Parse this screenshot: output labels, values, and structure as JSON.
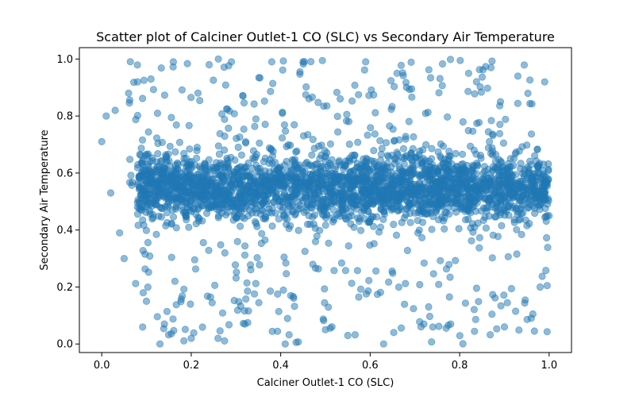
{
  "chart_data": {
    "type": "scatter",
    "title": "Scatter plot of Calciner Outlet-1 CO (SLC) vs Secondary Air Temperature",
    "xlabel": "Calciner Outlet-1 CO (SLC)",
    "ylabel": "Secondary Air Temperature",
    "xlim": [
      -0.05,
      1.05
    ],
    "ylim": [
      -0.03,
      1.04
    ],
    "xticks": [
      "0.0",
      "0.2",
      "0.4",
      "0.6",
      "0.8",
      "1.0"
    ],
    "yticks": [
      "0.0",
      "0.2",
      "0.4",
      "0.6",
      "0.8",
      "1.0"
    ],
    "grid": false,
    "legend": "none",
    "marker_color": "#1f77b4",
    "marker_alpha": 0.5,
    "series": [
      {
        "points_sampled": [
          [
            0.0,
            0.71
          ],
          [
            0.01,
            0.8
          ],
          [
            0.02,
            0.53
          ],
          [
            0.03,
            0.82
          ],
          [
            0.04,
            0.39
          ],
          [
            0.05,
            0.3
          ],
          [
            0.06,
            0.88
          ],
          [
            0.08,
            0.92
          ],
          [
            0.1,
            0.15
          ],
          [
            0.11,
            0.93
          ],
          [
            0.13,
            0.0
          ],
          [
            0.14,
            0.07
          ],
          [
            0.16,
            0.99
          ],
          [
            0.2,
            0.02
          ],
          [
            0.24,
            0.98
          ],
          [
            0.26,
            0.02
          ],
          [
            0.29,
            0.99
          ],
          [
            0.32,
            0.07
          ],
          [
            0.38,
            0.99
          ],
          [
            0.41,
            0.0
          ],
          [
            0.45,
            0.99
          ],
          [
            0.5,
            0.05
          ],
          [
            0.55,
            0.03
          ],
          [
            0.59,
            0.99
          ],
          [
            0.63,
            0.0
          ],
          [
            0.66,
            0.95
          ],
          [
            0.72,
            0.07
          ],
          [
            0.78,
            0.07
          ],
          [
            0.82,
            0.95
          ],
          [
            0.87,
            0.97
          ],
          [
            0.9,
            0.06
          ],
          [
            0.93,
            0.94
          ],
          [
            0.96,
            0.09
          ],
          [
            0.98,
            0.2
          ],
          [
            0.99,
            0.92
          ],
          [
            1.0,
            0.45
          ]
        ],
        "dense_region": {
          "x": [
            0.08,
            1.0
          ],
          "y": [
            0.25,
            0.85
          ],
          "center_y": 0.55
        }
      }
    ]
  }
}
